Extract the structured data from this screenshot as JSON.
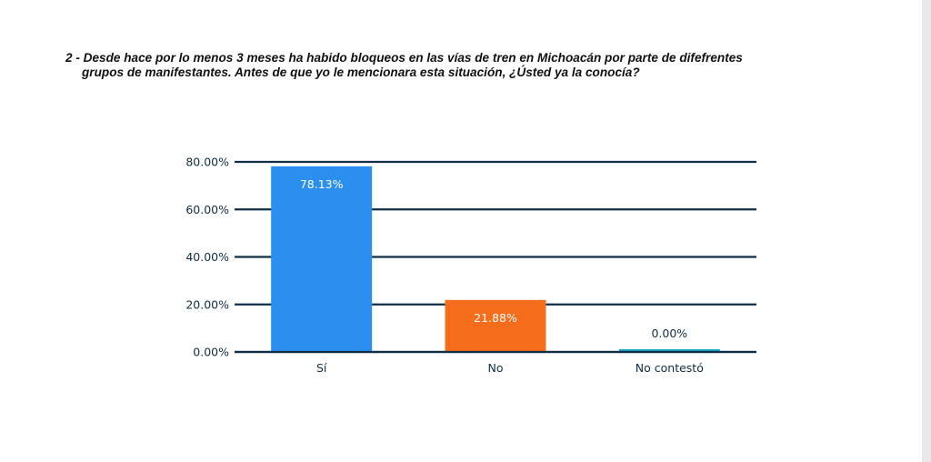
{
  "question": {
    "line1": "2 - Desde hace por lo menos 3 meses ha habido bloqueos en las vías de tren en Michoacán por parte de difefrentes",
    "line2": "grupos de manifestantes. Antes de que yo le mencionara esta situación, ¿Ústed ya la conocía?"
  },
  "chart_data": {
    "type": "bar",
    "categories": [
      "Sí",
      "No",
      "No contestó"
    ],
    "values": [
      78.13,
      21.88,
      0.0
    ],
    "data_labels": [
      "78.13%",
      "21.88%",
      "0.00%"
    ],
    "colors": [
      "#2b8ff0",
      "#f56d1b",
      "#1aa7c4"
    ],
    "ylim": [
      0,
      80
    ],
    "yticks": [
      0,
      20,
      40,
      60,
      80
    ],
    "ytick_labels": [
      "0.00%",
      "20.00%",
      "40.00%",
      "60.00%",
      "80.00%"
    ],
    "grid": true,
    "grid_color": "#0f2f47",
    "title": "",
    "xlabel": "",
    "ylabel": ""
  }
}
